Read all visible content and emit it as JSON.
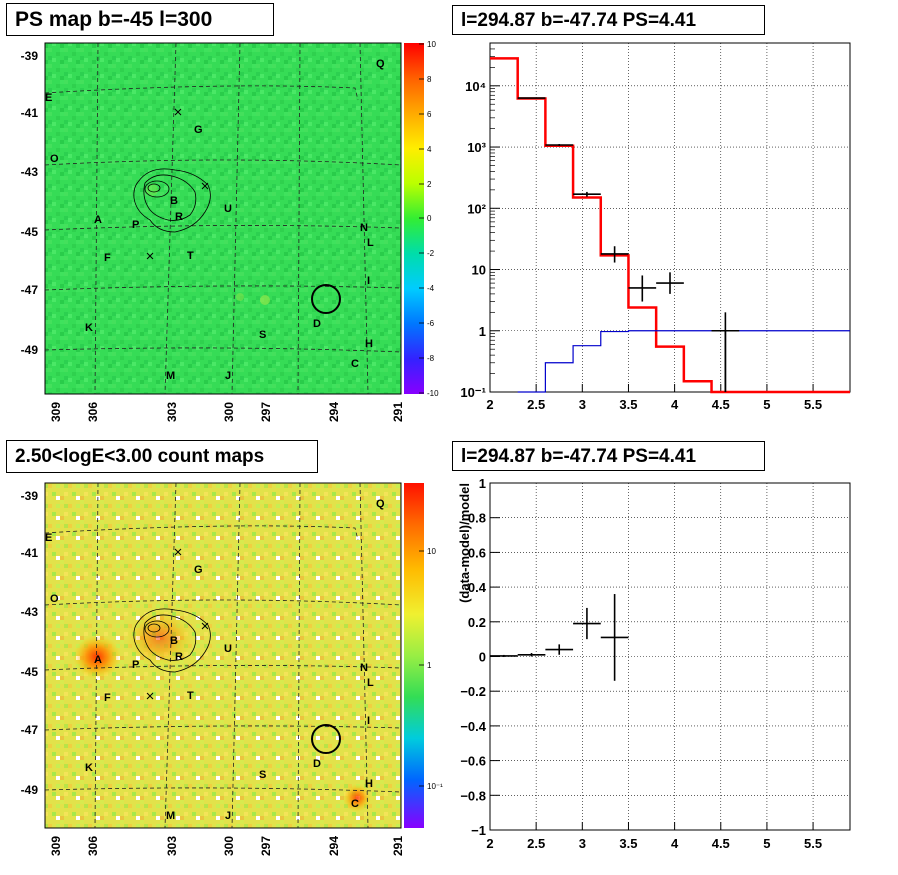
{
  "panels": {
    "ps_map_title": "PS map b=-45 l=300",
    "spectrum_title": "l=294.87 b=-47.74 PS=4.41",
    "count_map_title": "2.50<logE<3.00 count maps",
    "residual_title": "l=294.87 b=-47.74 PS=4.41"
  },
  "colors": {
    "ps_map_background": "#33dd55",
    "count_map_background": "#e6e24a",
    "model_line": "#ff0000",
    "background_line": "#0000cc",
    "data_marker": "#000000"
  },
  "maps": {
    "lat_ticks": [
      "-39",
      "-41",
      "-43",
      "-45",
      "-47",
      "-49"
    ],
    "lon_ticks": [
      "309",
      "306",
      "303",
      "300",
      "297",
      "294",
      "291"
    ],
    "sources": [
      "Q",
      "E",
      "G",
      "O",
      "B",
      "R",
      "U",
      "A",
      "P",
      "N",
      "L",
      "F",
      "T",
      "I",
      "D",
      "K",
      "S",
      "H",
      "C",
      "M",
      "J"
    ],
    "ps_colorbar_ticks": [
      "10",
      "8",
      "6",
      "4",
      "2",
      "0",
      "-2",
      "-4",
      "-6",
      "-8",
      "-10"
    ],
    "count_colorbar_ticks": [
      "10",
      "1",
      "10⁻¹"
    ]
  },
  "chart_data": [
    {
      "type": "line",
      "panel": "spectrum",
      "x_ticks": [
        "2",
        "2.5",
        "3",
        "3.5",
        "4",
        "4.5",
        "5",
        "5.5"
      ],
      "y_ticks": [
        "10⁻¹",
        "1",
        "10",
        "10²",
        "10³",
        "10⁴"
      ],
      "xlim": [
        2,
        5.9
      ],
      "ylim": [
        0.1,
        50000
      ],
      "y_scale": "log",
      "grid": true,
      "series": [
        {
          "role": "model",
          "color": "#ff0000",
          "bin_edges": [
            2.0,
            2.3,
            2.6,
            2.9,
            3.2,
            3.5,
            3.8,
            4.1,
            4.4,
            5.9
          ],
          "values": [
            28000,
            6200,
            1050,
            150,
            17,
            2.4,
            0.55,
            0.15,
            0.09
          ]
        },
        {
          "role": "background",
          "color": "#0000cc",
          "bin_edges": [
            2.3,
            2.6,
            2.9,
            3.2,
            3.5,
            5.9
          ],
          "values": [
            0.1,
            0.3,
            0.57,
            0.97,
            1.0
          ]
        },
        {
          "role": "data",
          "color": "#000000",
          "points": [
            {
              "x": 2.45,
              "xerr": 0.15,
              "y": 6300,
              "ylo": 6200,
              "yhi": 6400
            },
            {
              "x": 2.75,
              "xerr": 0.15,
              "y": 1080,
              "ylo": 1040,
              "yhi": 1120
            },
            {
              "x": 3.05,
              "xerr": 0.15,
              "y": 170,
              "ylo": 155,
              "yhi": 185
            },
            {
              "x": 3.35,
              "xerr": 0.15,
              "y": 18,
              "ylo": 13,
              "yhi": 24
            },
            {
              "x": 3.65,
              "xerr": 0.15,
              "y": 5,
              "ylo": 3,
              "yhi": 8
            },
            {
              "x": 3.95,
              "xerr": 0.15,
              "y": 6,
              "ylo": 4,
              "yhi": 9
            },
            {
              "x": 4.55,
              "xerr": 0.15,
              "y": 1,
              "ylo": 0.1,
              "yhi": 2
            }
          ]
        }
      ]
    },
    {
      "type": "scatter",
      "panel": "residual",
      "ylabel": "(data-model)/model",
      "x_ticks": [
        "2",
        "2.5",
        "3",
        "3.5",
        "4",
        "4.5",
        "5",
        "5.5"
      ],
      "y_ticks": [
        "1",
        "0.8",
        "0.6",
        "0.4",
        "0.2",
        "0",
        "−0.2",
        "−0.4",
        "−0.6",
        "−0.8",
        "−1"
      ],
      "xlim": [
        2,
        5.9
      ],
      "ylim": [
        -1,
        1
      ],
      "grid": true,
      "points": [
        {
          "x": 2.15,
          "xerr": 0.15,
          "y": 0.003,
          "yerr": 0.006
        },
        {
          "x": 2.45,
          "xerr": 0.15,
          "y": 0.01,
          "yerr": 0.01
        },
        {
          "x": 2.75,
          "xerr": 0.15,
          "y": 0.04,
          "yerr": 0.03
        },
        {
          "x": 3.05,
          "xerr": 0.15,
          "y": 0.19,
          "yerr": 0.09
        },
        {
          "x": 3.35,
          "xerr": 0.15,
          "y": 0.11,
          "yerr": 0.25
        }
      ]
    }
  ]
}
